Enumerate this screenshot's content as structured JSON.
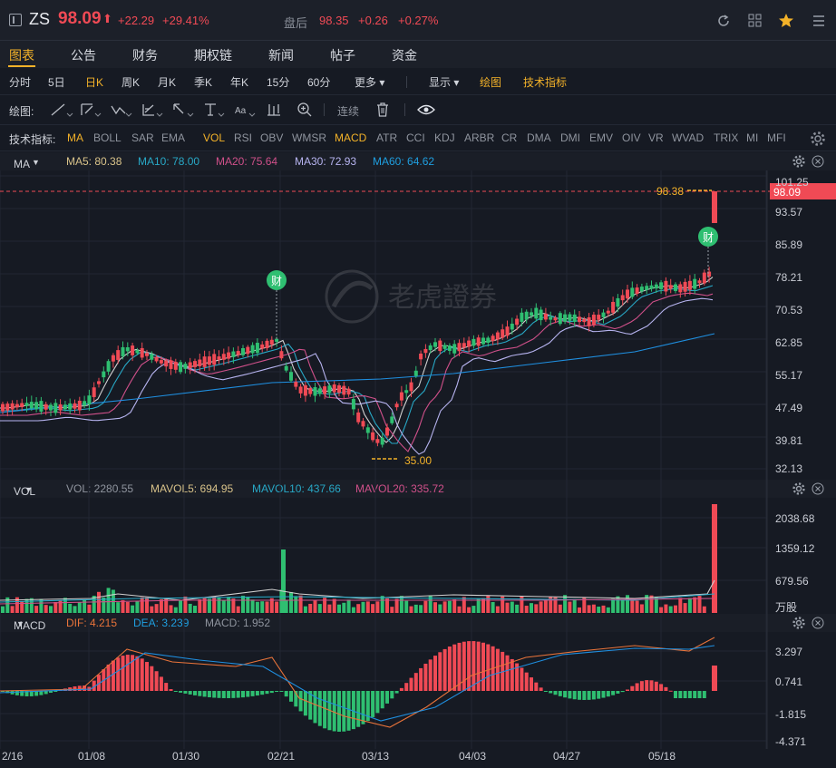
{
  "header": {
    "symbol": "ZS",
    "price": "98.09",
    "arrow": "⬆",
    "change": "+22.29",
    "change_pct": "+29.41%",
    "after_label": "盘后",
    "after_price": "98.35",
    "after_change": "+0.26",
    "after_pct": "+0.27%"
  },
  "tabs": [
    "图表",
    "公告",
    "财务",
    "期权链",
    "新闻",
    "帖子",
    "资金"
  ],
  "periods": [
    "分时",
    "5日",
    "日K",
    "周K",
    "月K",
    "季K",
    "年K",
    "15分",
    "60分",
    "更多"
  ],
  "period_tools": {
    "display": "显示",
    "draw": "绘图",
    "indicators": "技术指标"
  },
  "drawbar": {
    "label": "绘图:",
    "continuous": "连续"
  },
  "indicators": {
    "label": "技术指标:",
    "items": [
      "MA",
      "BOLL",
      "SAR",
      "EMA",
      "VOL",
      "RSI",
      "OBV",
      "WMSR",
      "MACD",
      "ATR",
      "CCI",
      "KDJ",
      "ARBR",
      "CR",
      "DMA",
      "DMI",
      "EMV",
      "OIV",
      "VR",
      "WVAD",
      "TRIX",
      "MI",
      "MFI"
    ]
  },
  "ma_panel": {
    "name": "MA",
    "ma5": "MA5: 80.38",
    "ma10": "MA10: 78.00",
    "ma20": "MA20: 75.64",
    "ma30": "MA30: 72.93",
    "ma60": "MA60: 64.62",
    "y_ticks": [
      "101.25",
      "93.57",
      "85.89",
      "78.21",
      "70.53",
      "62.85",
      "55.17",
      "47.49",
      "39.81",
      "32.13"
    ],
    "current_price_tag": "98.09",
    "high_label": "98.38",
    "low_label": "35.00",
    "earnings_badge": "财",
    "watermark": "老虎證券"
  },
  "vol_panel": {
    "name": "VOL",
    "vol": "VOL: 2280.55",
    "mavol5": "MAVOL5: 694.95",
    "mavol10": "MAVOL10: 437.66",
    "mavol20": "MAVOL20: 335.72",
    "y_ticks": [
      "2038.68",
      "1359.12",
      "679.56",
      "万股"
    ]
  },
  "macd_panel": {
    "name": "MACD",
    "dif": "DIF: 4.215",
    "dea": "DEA: 3.239",
    "macd": "MACD: 1.952",
    "y_ticks": [
      "3.297",
      "0.741",
      "-1.815",
      "-4.371"
    ]
  },
  "x_axis": [
    "2/16",
    "01/08",
    "01/30",
    "02/21",
    "03/13",
    "04/03",
    "04/27",
    "05/18"
  ],
  "colors": {
    "up": "#f04a55",
    "down": "#2fbf71",
    "accent": "#f3b229",
    "ma5": "#d0d0d0",
    "ma10": "#28a8c6",
    "ma20": "#d0508a",
    "ma30": "#b7b4f0",
    "ma60": "#1f8fe0"
  }
}
